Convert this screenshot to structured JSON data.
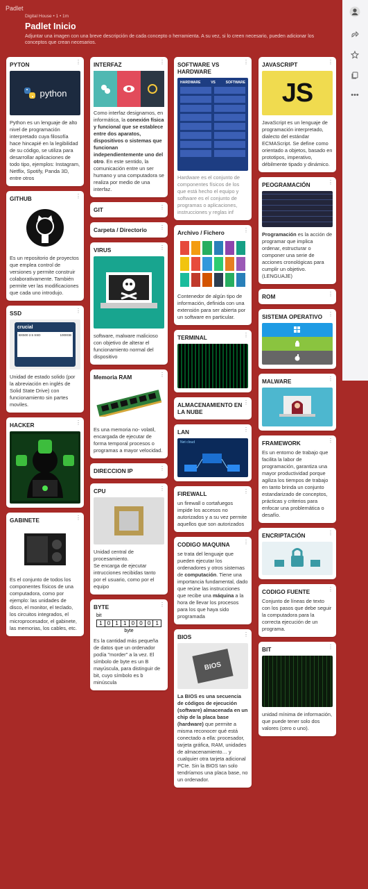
{
  "brand": "Padlet",
  "header": {
    "meta": "Digital House • 1 • 1m",
    "title": "Padlet Inicio",
    "desc": "Adjuntar una imagen con una breve descripción de cada concepto o herramienta. A su vez, si lo creen necesario, pueden adicionar los conceptos que crean necesarios."
  },
  "sidebar": {
    "icons": [
      "user-icon",
      "share-icon",
      "star-icon",
      "copy-icon",
      "more-icon"
    ],
    "more": "•••"
  },
  "cards": {
    "python": {
      "title": "PYTON",
      "logo": "python",
      "text": "Python es un lenguaje de alto nivel de programación interpretado cuya filosofía hace hincapié en la legibilidad de su código, se utiliza para desarrollar aplicaciones de todo tipo, ejemplos: Instagram, Netflix, Spotify, Panda 3D, entre otros"
    },
    "github": {
      "title": "GITHUB",
      "text": "Es un repositorio de proyectos que emplea control de versiones y permite construir colaborativamente. También permite ver las modificaciones que cada uno introdujo."
    },
    "ssd": {
      "title": "SSD",
      "brand": "crucial",
      "model": "BX500 2.5 SSD",
      "size": "1000GB",
      "text": "Unidad de estado solido (por la abreviación en inglés de Solid State Drive) con funcionamiento sin partes moviles."
    },
    "hacker": {
      "title": "HACKER"
    },
    "gabinete": {
      "title": "GABINETE",
      "text": "Es el conjunto de todos los componentes físicos de una computadora, como por ejemplo: las unidades de disco, el monitor, el teclado, los circuitos integrados, el microprocesador, el gabinete, las memorias, los cables, etc."
    },
    "interfaz": {
      "title": "INTERFAZ",
      "t1": "Como interfaz designamos, en informática, la ",
      "b1": "conexión física y funcional que se establece entre dos aparatos, dispositivos o sistemas que funcionan independientemente uno del otro",
      "t2": ". En este sentido, la comunicación entre un ser humano y una computadora se realiza por medio de una interfaz."
    },
    "git": {
      "title": "GIT"
    },
    "carpeta": {
      "title": "Carpeta / Directorio"
    },
    "virus": {
      "title": "VIRUS",
      "text": "software, malware malicioso con objetivo de alterar el funcionamiento normal del dispositivo"
    },
    "ram": {
      "title": "Memoria RAM",
      "text": "Es una memoria no- volatil, encargada de ejecutar de forma temporal procesos o programas a mayor velocidad."
    },
    "direccion": {
      "title": "DIRECCION IP"
    },
    "cpu": {
      "title": "CPU",
      "text": "Unidad central de procesamiento.\nSe encarga de ejecutar intrucciones recibidas tanto por el usuario, como por el equipo"
    },
    "byte": {
      "title": "BYTE",
      "bit_label": "bit",
      "bits": [
        "1",
        "0",
        "1",
        "1",
        "0",
        "0",
        "0",
        "1"
      ],
      "byte_label": "byte",
      "text": "Es la cantidad más pequeña de datos que un ordenador podía \"morder\" a la vez. El símbolo de byte es un B mayúscula, para distinguir de bit, cuyo símbolo es b minúscula"
    },
    "svh": {
      "title": "SOFTWARE VS HARDWARE",
      "hw": "HARDWARE",
      "vs": "VS",
      "sw": "SOFTWARE",
      "text": "Hardware es el conjunto de componentes físicos de los que está hecho el equipo y software es el conjunto de programas o aplicaciones, instrucciones y reglas inf"
    },
    "archivo": {
      "title": "Archivo / Fichero",
      "text": "Contenedor de algún tipo de información, definida con una extensión para ser abierta por un software en particular."
    },
    "terminal": {
      "title": "TERMINAL"
    },
    "nube": {
      "title": "ALMACENAMIENTO EN LA NUBE"
    },
    "lan": {
      "title": "LAN",
      "badge": "Net cloud"
    },
    "firewall": {
      "title": "FIREWALL",
      "text": "un firewall o cortafuegos impide los accesos no autorizados y a su vez permite aquellos que son autorizados"
    },
    "codigo": {
      "title": "CODIGO MAQUINA",
      "t1": "se trata del lenguaje que pueden ejecutar los ordenadores y otros sistemas de ",
      "b1": "computación",
      "t2": ". Tiene una importancia fundamental, dado que reúne las instrucciones que recibe una ",
      "b2": "máquina",
      "t3": " a la hora de llevar los procesos para los que haya sido programada"
    },
    "bios": {
      "title": "BIOS",
      "chip": "BIOS",
      "b1": "La BIOS es una secuencia de códigos de ejecución (software) almacenada en un chip de la placa base (hardware)",
      "t1": " que permite a misma reconocer qué está conectado a ella: procesador, tarjeta gráfica, RAM, unidades de almacenamiento… y cualquier otra tarjeta adicional PCIe. Sin la BIOS tan solo tendríamos una placa base, no un ordenador."
    },
    "js": {
      "title": "JAVASCRIPT",
      "logo": "JS",
      "text": "JavaScript es un lenguaje de programación interpretado, dialecto del estándar ECMAScript. Se define como orientado a objetos,  basado en prototipos, imperativo, débilmente tipado y dinámico."
    },
    "prog": {
      "title": "PEOGRAMACIÓN",
      "b1": "Programación",
      "t1": " es la acción de programar que implica ordenar, estructurar o componer una serie de acciones cronológicas para cumplir un objetivo. (LENGUAJE)"
    },
    "rom": {
      "title": "ROM"
    },
    "so": {
      "title": "SISTEMA OPERATIVO"
    },
    "malware": {
      "title": "MALWARE"
    },
    "framework": {
      "title": "FRAMEWORK",
      "text": "Es un entorno de trabajo que facilita la labor de programación, garantiza una mayor productividad porque agiliza los tiempos de trabajo en tanto brinda un conjunto estandarizado de conceptos, prácticas y criterios para enfocar una problemática o desafío."
    },
    "encrip": {
      "title": "ENCRIPTACIÓN"
    },
    "fuente": {
      "title": "CODIGO FUENTE",
      "text": "Conjunto de líneas de texto con los pasos que debe seguir la computadora para la correcta ejecución de un programa."
    },
    "bit": {
      "title": "BIT",
      "text": " unidad mínima de información, que puede tener solo dos valores (cero o uno)."
    }
  },
  "colors": {
    "background": "#a82a27",
    "card": "#ffffff",
    "js_yellow": "#f0db4f"
  }
}
